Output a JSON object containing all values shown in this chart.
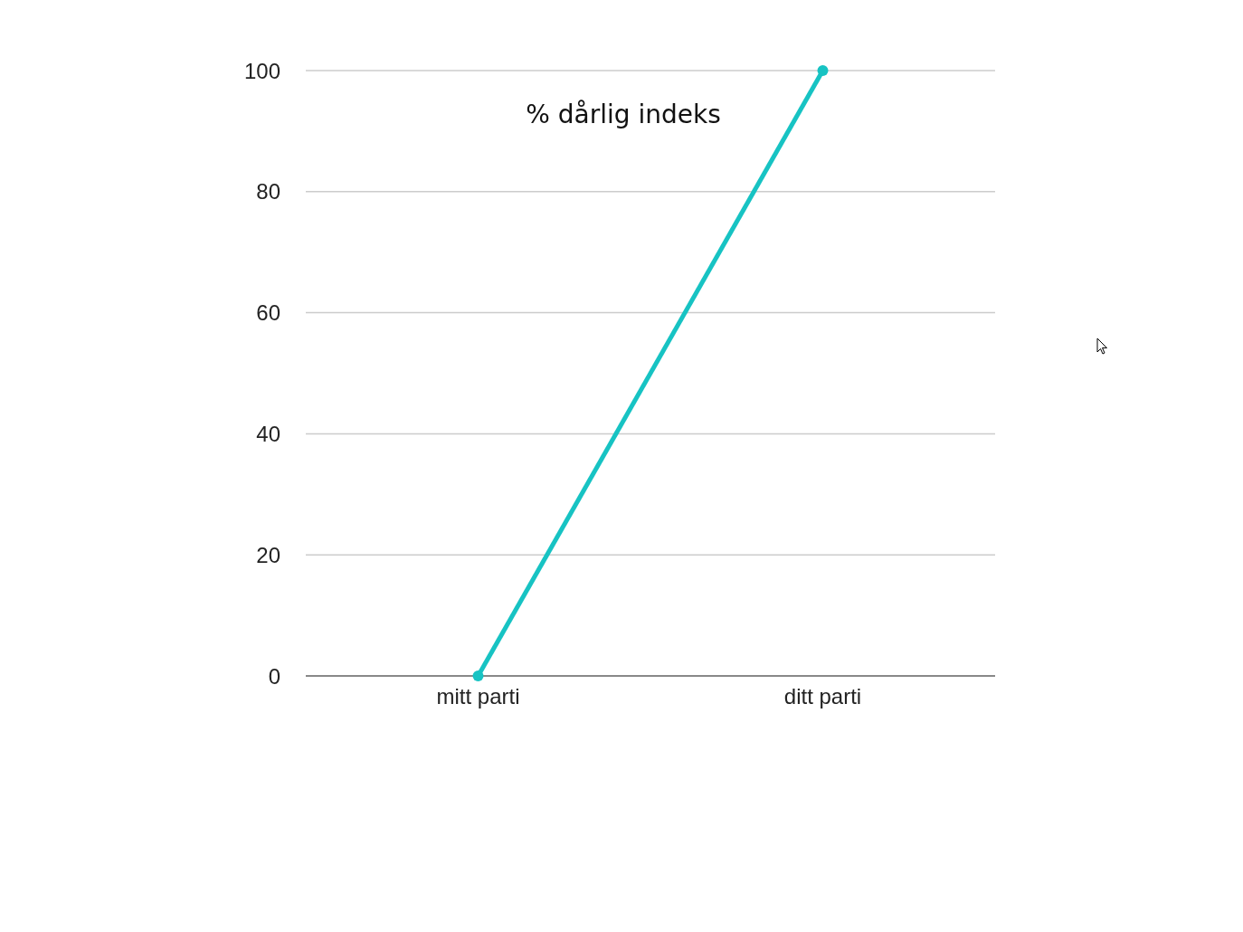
{
  "chart_data": {
    "type": "line",
    "title": "% dårlig indeks",
    "categories": [
      "mitt parti",
      "ditt parti"
    ],
    "series": [
      {
        "color": "#17c3c3",
        "values": [
          0,
          100
        ]
      }
    ],
    "ylim": [
      0,
      100
    ],
    "yticks": [
      0,
      20,
      40,
      60,
      80,
      100
    ],
    "grid": "y",
    "marker": "circle",
    "line_style": "solid"
  }
}
